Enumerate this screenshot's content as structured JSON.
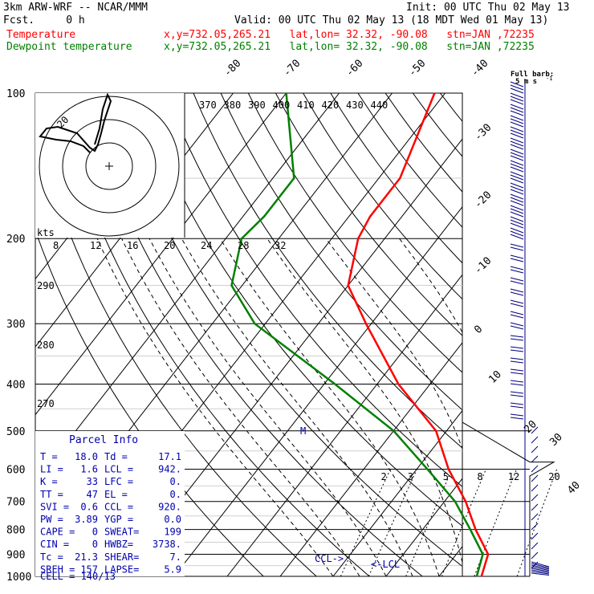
{
  "header": {
    "model": "3km ARW-WRF -- NCAR/MMM",
    "init": "Init: 00 UTC Thu 02 May 13",
    "fcst": "Fcst.     0 h",
    "valid": "Valid: 00 UTC Thu 02 May 13 (18 MDT Wed 01 May 13)",
    "temp_label": "Temperature",
    "dew_label": "Dewpoint temperature",
    "temp_loc": "x,y=732.05,265.21   lat,lon= 32.32, -90.08   stn=JAN ,72235",
    "dew_loc": "x,y=732.05,265.21   lat,lon= 32.32, -90.08   stn=JAN ,72235"
  },
  "colors": {
    "temperature": "#ff0000",
    "dewpoint": "#008000",
    "barbs": "#00007f",
    "text_red": "#ff0000",
    "text_green": "#008000",
    "text_blue": "#0000b0"
  },
  "barb_legend": {
    "line1": "Full barb:",
    "line2": "5 m s",
    "sup": "-1"
  },
  "chart_data": {
    "type": "skew-t",
    "pressure_levels": [
      100,
      200,
      300,
      400,
      500,
      600,
      700,
      800,
      900,
      1000
    ],
    "temp_labels": [
      -80,
      -70,
      -60,
      -50,
      -40,
      -30,
      -20,
      -10,
      0,
      10,
      20,
      30,
      40
    ],
    "theta_e_labels": [
      370,
      380,
      390,
      400,
      410,
      420,
      430,
      440
    ],
    "theta_labels": [
      290,
      280,
      270
    ],
    "mixing_ratio_labels": [
      2,
      3,
      5,
      8,
      12,
      20
    ],
    "hodograph": {
      "units": "kts",
      "ring_label": "20",
      "speed_labels": [
        8,
        12,
        16,
        20,
        24,
        28,
        32
      ]
    },
    "series": [
      {
        "name": "Temperature",
        "points": [
          [
            100,
            -62
          ],
          [
            150,
            -56
          ],
          [
            180,
            -56
          ],
          [
            200,
            -55
          ],
          [
            250,
            -50
          ],
          [
            300,
            -41
          ],
          [
            400,
            -26
          ],
          [
            500,
            -12
          ],
          [
            600,
            -4
          ],
          [
            700,
            4
          ],
          [
            800,
            10
          ],
          [
            900,
            16
          ],
          [
            1000,
            18
          ]
        ]
      },
      {
        "name": "Dewpoint temperature",
        "points": [
          [
            100,
            -90
          ],
          [
            150,
            -76
          ],
          [
            180,
            -76
          ],
          [
            200,
            -77
          ],
          [
            250,
            -72
          ],
          [
            300,
            -62
          ],
          [
            400,
            -38
          ],
          [
            500,
            -20
          ],
          [
            600,
            -8
          ],
          [
            700,
            2
          ],
          [
            800,
            9
          ],
          [
            900,
            15
          ],
          [
            1000,
            17.1
          ]
        ]
      }
    ],
    "annotations": {
      "M": "M",
      "ccl": "CCL",
      "lcl": "LCL"
    }
  },
  "parcel": {
    "title": "Parcel Info",
    "rows": [
      {
        "l": "T   =",
        "v": "18.0",
        "l2": "Td  =",
        "v2": "17.1"
      },
      {
        "l": "LI  =",
        "v": "1.6",
        "l2": "LCL =",
        "v2": "942."
      },
      {
        "l": "K   =",
        "v": "33",
        "l2": "LFC =",
        "v2": "0."
      },
      {
        "l": "TT  =",
        "v": "47",
        "l2": "EL  =",
        "v2": "0."
      },
      {
        "l": "SVI =",
        "v": "0.6",
        "l2": "CCL =",
        "v2": "920."
      },
      {
        "l": "PW  =",
        "v": "3.89",
        "l2": "YGP =",
        "v2": "0.0"
      },
      {
        "l": "CAPE =",
        "v": "0",
        "l2": "SWEAT=",
        "v2": "199"
      },
      {
        "l": "CIN  =",
        "v": "0",
        "l2": "HWBZ=",
        "v2": "3738."
      },
      {
        "l": "Tc   =",
        "v": "21.3",
        "l2": "SHEAR=",
        "v2": "7."
      },
      {
        "l": "SREH =",
        "v": "157",
        "l2": "LAPSE=",
        "v2": "5.9"
      }
    ],
    "cell": "CELL = 140/13"
  }
}
